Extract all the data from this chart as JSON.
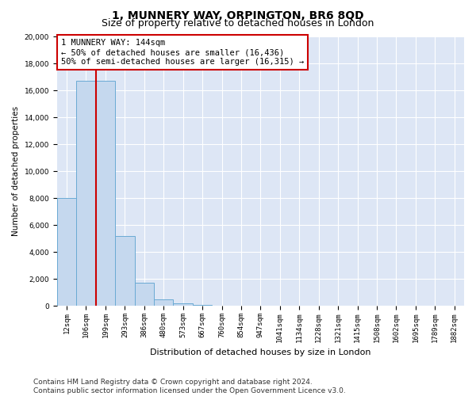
{
  "title": "1, MUNNERY WAY, ORPINGTON, BR6 8QD",
  "subtitle": "Size of property relative to detached houses in London",
  "xlabel": "Distribution of detached houses by size in London",
  "ylabel": "Number of detached properties",
  "categories": [
    "12sqm",
    "106sqm",
    "199sqm",
    "293sqm",
    "386sqm",
    "480sqm",
    "573sqm",
    "667sqm",
    "760sqm",
    "854sqm",
    "947sqm",
    "1041sqm",
    "1134sqm",
    "1228sqm",
    "1321sqm",
    "1415sqm",
    "1508sqm",
    "1602sqm",
    "1695sqm",
    "1789sqm",
    "1882sqm"
  ],
  "values": [
    8000,
    16700,
    16700,
    5200,
    1700,
    480,
    200,
    100,
    50,
    50,
    50,
    0,
    0,
    0,
    0,
    0,
    0,
    0,
    0,
    0,
    0
  ],
  "bar_color": "#c5d8ee",
  "bar_edge_color": "#6aaad4",
  "red_line_x": 1.5,
  "annotation_text": "1 MUNNERY WAY: 144sqm\n← 50% of detached houses are smaller (16,436)\n50% of semi-detached houses are larger (16,315) →",
  "annotation_box_color": "#ffffff",
  "annotation_box_edge": "#cc0000",
  "ylim": [
    0,
    20000
  ],
  "yticks": [
    0,
    2000,
    4000,
    6000,
    8000,
    10000,
    12000,
    14000,
    16000,
    18000,
    20000
  ],
  "plot_bg_color": "#dde6f5",
  "footer": "Contains HM Land Registry data © Crown copyright and database right 2024.\nContains public sector information licensed under the Open Government Licence v3.0.",
  "title_fontsize": 10,
  "subtitle_fontsize": 9,
  "xlabel_fontsize": 8,
  "ylabel_fontsize": 7.5,
  "tick_fontsize": 6.5,
  "footer_fontsize": 6.5
}
